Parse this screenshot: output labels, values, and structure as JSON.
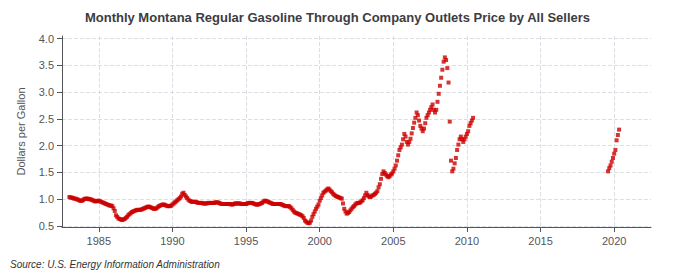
{
  "chart_data": {
    "type": "scatter",
    "title": "Monthly Montana Regular Gasoline Through Company Outlets Price by All Sellers",
    "ylabel": "Dollars per Gallon",
    "source": "Source: U.S. Energy Information Administration",
    "color": "#cc0000",
    "marker": "square",
    "grid": true,
    "xlim": [
      1982.5,
      2022.5
    ],
    "ylim": [
      0.48,
      4.05
    ],
    "xticks": [
      1985,
      1990,
      1995,
      2000,
      2005,
      2010,
      2015,
      2020
    ],
    "yticks": [
      0.5,
      {
        "value": 1.0,
        "label": "1.0"
      },
      1.5,
      {
        "value": 2.0,
        "label": "2.0"
      },
      2.5,
      {
        "value": 3.0,
        "label": "3.0"
      },
      3.5,
      {
        "value": 4.0,
        "label": "4.0"
      }
    ],
    "x": [
      1983.0,
      1983.083,
      1983.167,
      1983.25,
      1983.333,
      1983.417,
      1983.5,
      1983.583,
      1983.667,
      1983.75,
      1983.833,
      1983.917,
      1984.0,
      1984.083,
      1984.167,
      1984.25,
      1984.333,
      1984.417,
      1984.5,
      1984.583,
      1984.667,
      1984.75,
      1984.833,
      1984.917,
      1985.0,
      1985.083,
      1985.167,
      1985.25,
      1985.333,
      1985.417,
      1985.5,
      1985.583,
      1985.667,
      1985.75,
      1985.833,
      1985.917,
      1986.0,
      1986.083,
      1986.167,
      1986.25,
      1986.333,
      1986.417,
      1986.5,
      1986.583,
      1986.667,
      1986.75,
      1986.833,
      1986.917,
      1987.0,
      1987.083,
      1987.167,
      1987.25,
      1987.333,
      1987.417,
      1987.5,
      1987.583,
      1987.667,
      1987.75,
      1987.833,
      1987.917,
      1988.0,
      1988.083,
      1988.167,
      1988.25,
      1988.333,
      1988.417,
      1988.5,
      1988.583,
      1988.667,
      1988.75,
      1988.833,
      1988.917,
      1989.0,
      1989.083,
      1989.167,
      1989.25,
      1989.333,
      1989.417,
      1989.5,
      1989.583,
      1989.667,
      1989.75,
      1989.833,
      1989.917,
      1990.0,
      1990.083,
      1990.167,
      1990.25,
      1990.333,
      1990.417,
      1990.5,
      1990.583,
      1990.667,
      1990.75,
      1990.833,
      1990.917,
      1991.0,
      1991.083,
      1991.167,
      1991.25,
      1991.333,
      1991.417,
      1991.5,
      1991.583,
      1991.667,
      1991.75,
      1991.833,
      1991.917,
      1992.0,
      1992.083,
      1992.167,
      1992.25,
      1992.333,
      1992.417,
      1992.5,
      1992.583,
      1992.667,
      1992.75,
      1992.833,
      1992.917,
      1993.0,
      1993.083,
      1993.167,
      1993.25,
      1993.333,
      1993.417,
      1993.5,
      1993.583,
      1993.667,
      1993.75,
      1993.833,
      1993.917,
      1994.0,
      1994.083,
      1994.167,
      1994.25,
      1994.333,
      1994.417,
      1994.5,
      1994.583,
      1994.667,
      1994.75,
      1994.833,
      1994.917,
      1995.0,
      1995.083,
      1995.167,
      1995.25,
      1995.333,
      1995.417,
      1995.5,
      1995.583,
      1995.667,
      1995.75,
      1995.833,
      1995.917,
      1996.0,
      1996.083,
      1996.167,
      1996.25,
      1996.333,
      1996.417,
      1996.5,
      1996.583,
      1996.667,
      1996.75,
      1996.833,
      1996.917,
      1997.0,
      1997.083,
      1997.167,
      1997.25,
      1997.333,
      1997.417,
      1997.5,
      1997.583,
      1997.667,
      1997.75,
      1997.833,
      1997.917,
      1998.0,
      1998.083,
      1998.167,
      1998.25,
      1998.333,
      1998.417,
      1998.5,
      1998.583,
      1998.667,
      1998.75,
      1998.833,
      1998.917,
      1999.0,
      1999.083,
      1999.167,
      1999.25,
      1999.333,
      1999.417,
      1999.5,
      1999.583,
      1999.667,
      1999.75,
      1999.833,
      1999.917,
      2000.0,
      2000.083,
      2000.167,
      2000.25,
      2000.333,
      2000.417,
      2000.5,
      2000.583,
      2000.667,
      2000.75,
      2000.833,
      2000.917,
      2001.0,
      2001.083,
      2001.167,
      2001.25,
      2001.333,
      2001.417,
      2001.5,
      2001.583,
      2001.667,
      2001.75,
      2001.833,
      2001.917,
      2002.0,
      2002.083,
      2002.167,
      2002.25,
      2002.333,
      2002.417,
      2002.5,
      2002.583,
      2002.667,
      2002.75,
      2002.833,
      2002.917,
      2003.0,
      2003.083,
      2003.167,
      2003.25,
      2003.333,
      2003.417,
      2003.5,
      2003.583,
      2003.667,
      2003.75,
      2003.833,
      2003.917,
      2004.0,
      2004.083,
      2004.167,
      2004.25,
      2004.333,
      2004.417,
      2004.5,
      2004.583,
      2004.667,
      2004.75,
      2004.833,
      2004.917,
      2005.0,
      2005.083,
      2005.167,
      2005.25,
      2005.333,
      2005.417,
      2005.5,
      2005.583,
      2005.667,
      2005.75,
      2005.833,
      2005.917,
      2006.0,
      2006.083,
      2006.167,
      2006.25,
      2006.333,
      2006.417,
      2006.5,
      2006.583,
      2006.667,
      2006.75,
      2006.833,
      2006.917,
      2007.0,
      2007.083,
      2007.167,
      2007.25,
      2007.333,
      2007.417,
      2007.5,
      2007.583,
      2007.667,
      2007.75,
      2007.833,
      2007.917,
      2008.0,
      2008.083,
      2008.167,
      2008.25,
      2008.333,
      2008.417,
      2008.5,
      2008.583,
      2008.667,
      2008.75,
      2008.833,
      2008.917,
      2009.0,
      2009.083,
      2009.167,
      2009.25,
      2009.333,
      2009.417,
      2009.5,
      2009.583,
      2009.667,
      2009.75,
      2009.833,
      2009.917,
      2010.0,
      2010.083,
      2010.167,
      2010.25,
      2010.333,
      2010.417,
      2019.583,
      2019.667,
      2019.75,
      2019.833,
      2019.917,
      2020.0,
      2020.083,
      2020.167,
      2020.25,
      2020.333
    ],
    "values": [
      1.04,
      1.03,
      1.03,
      1.02,
      1.01,
      1.01,
      1.0,
      0.99,
      0.98,
      0.97,
      0.97,
      0.98,
      1.0,
      1.01,
      1.01,
      1.01,
      1.0,
      1.0,
      0.99,
      0.98,
      0.97,
      0.96,
      0.96,
      0.97,
      0.97,
      0.96,
      0.95,
      0.94,
      0.93,
      0.92,
      0.91,
      0.9,
      0.89,
      0.88,
      0.88,
      0.87,
      0.83,
      0.78,
      0.7,
      0.67,
      0.64,
      0.63,
      0.62,
      0.61,
      0.62,
      0.63,
      0.65,
      0.67,
      0.7,
      0.72,
      0.74,
      0.76,
      0.77,
      0.78,
      0.79,
      0.8,
      0.8,
      0.8,
      0.8,
      0.81,
      0.82,
      0.83,
      0.84,
      0.85,
      0.86,
      0.86,
      0.85,
      0.84,
      0.83,
      0.82,
      0.82,
      0.83,
      0.85,
      0.87,
      0.88,
      0.89,
      0.9,
      0.9,
      0.89,
      0.88,
      0.87,
      0.87,
      0.87,
      0.88,
      0.9,
      0.92,
      0.94,
      0.96,
      0.98,
      1.0,
      1.02,
      1.05,
      1.1,
      1.12,
      1.08,
      1.05,
      1.02,
      0.99,
      0.97,
      0.96,
      0.95,
      0.95,
      0.95,
      0.95,
      0.94,
      0.93,
      0.93,
      0.93,
      0.93,
      0.92,
      0.92,
      0.92,
      0.92,
      0.93,
      0.93,
      0.93,
      0.93,
      0.93,
      0.93,
      0.94,
      0.94,
      0.94,
      0.93,
      0.92,
      0.91,
      0.91,
      0.91,
      0.91,
      0.91,
      0.91,
      0.91,
      0.91,
      0.9,
      0.9,
      0.91,
      0.92,
      0.92,
      0.92,
      0.92,
      0.92,
      0.91,
      0.91,
      0.91,
      0.91,
      0.91,
      0.92,
      0.93,
      0.93,
      0.93,
      0.93,
      0.92,
      0.91,
      0.9,
      0.9,
      0.9,
      0.91,
      0.92,
      0.93,
      0.95,
      0.97,
      0.97,
      0.96,
      0.95,
      0.94,
      0.93,
      0.92,
      0.91,
      0.91,
      0.91,
      0.91,
      0.91,
      0.91,
      0.91,
      0.9,
      0.89,
      0.88,
      0.87,
      0.87,
      0.87,
      0.87,
      0.85,
      0.83,
      0.8,
      0.77,
      0.75,
      0.74,
      0.73,
      0.72,
      0.71,
      0.7,
      0.68,
      0.65,
      0.6,
      0.58,
      0.56,
      0.55,
      0.56,
      0.6,
      0.67,
      0.72,
      0.77,
      0.82,
      0.86,
      0.9,
      0.97,
      1.02,
      1.07,
      1.12,
      1.14,
      1.16,
      1.18,
      1.2,
      1.18,
      1.15,
      1.13,
      1.1,
      1.08,
      1.06,
      1.05,
      1.04,
      1.03,
      1.02,
      1.01,
      0.92,
      0.82,
      0.77,
      0.73,
      0.74,
      0.76,
      0.79,
      0.82,
      0.85,
      0.87,
      0.9,
      0.92,
      0.93,
      0.93,
      0.94,
      0.96,
      0.98,
      1.02,
      1.07,
      1.12,
      1.08,
      1.05,
      1.04,
      1.05,
      1.07,
      1.08,
      1.1,
      1.12,
      1.15,
      1.22,
      1.28,
      1.38,
      1.47,
      1.52,
      1.49,
      1.46,
      1.43,
      1.41,
      1.43,
      1.46,
      1.48,
      1.52,
      1.57,
      1.63,
      1.72,
      1.82,
      1.92,
      1.97,
      2.02,
      2.12,
      2.22,
      2.17,
      2.07,
      2.02,
      2.07,
      2.13,
      2.23,
      2.33,
      2.43,
      2.52,
      2.62,
      2.57,
      2.47,
      2.37,
      2.32,
      2.27,
      2.32,
      2.42,
      2.52,
      2.57,
      2.62,
      2.67,
      2.72,
      2.77,
      2.67,
      2.62,
      2.67,
      2.82,
      2.97,
      3.12,
      3.27,
      3.42,
      3.57,
      3.65,
      3.6,
      3.45,
      3.18,
      2.45,
      1.72,
      1.52,
      1.57,
      1.67,
      1.77,
      1.92,
      2.02,
      2.12,
      2.17,
      2.12,
      2.07,
      2.12,
      2.17,
      2.22,
      2.27,
      2.37,
      2.42,
      2.47,
      2.52,
      1.52,
      1.58,
      1.63,
      1.7,
      1.77,
      1.85,
      1.92,
      2.1,
      2.2,
      2.3
    ]
  }
}
